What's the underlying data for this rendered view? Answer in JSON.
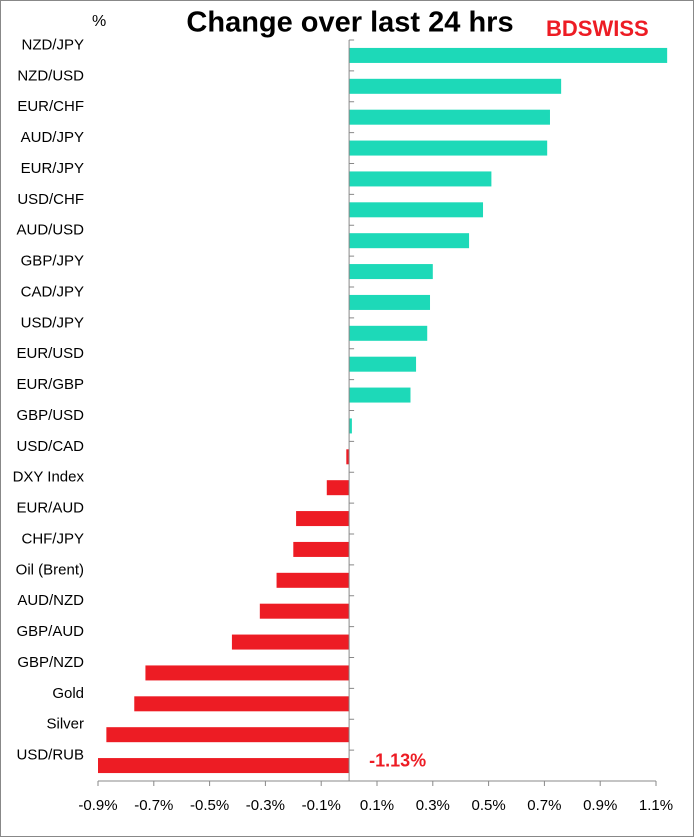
{
  "chart_data": {
    "type": "hbar",
    "title": "Change over last 24 hrs",
    "unit_label": "%",
    "logo": "BDSWISS",
    "categories": [
      "NZD/JPY",
      "NZD/USD",
      "EUR/CHF",
      "AUD/JPY",
      "EUR/JPY",
      "USD/CHF",
      "AUD/USD",
      "GBP/JPY",
      "CAD/JPY",
      "USD/JPY",
      "EUR/USD",
      "EUR/GBP",
      "GBP/USD",
      "USD/CAD",
      "DXY Index",
      "EUR/AUD",
      "CHF/JPY",
      "Oil (Brent)",
      "AUD/NZD",
      "GBP/AUD",
      "GBP/NZD",
      "Gold",
      "Silver",
      "USD/RUB"
    ],
    "values": [
      1.14,
      0.76,
      0.72,
      0.71,
      0.51,
      0.48,
      0.43,
      0.3,
      0.29,
      0.28,
      0.24,
      0.22,
      0.01,
      -0.01,
      -0.08,
      -0.19,
      -0.2,
      -0.26,
      -0.32,
      -0.42,
      -0.73,
      -0.77,
      -0.87,
      -1.13
    ],
    "value_labels": [
      null,
      null,
      null,
      null,
      null,
      null,
      null,
      null,
      null,
      null,
      null,
      null,
      null,
      null,
      null,
      null,
      null,
      null,
      null,
      null,
      null,
      null,
      null,
      "-1.13%"
    ],
    "positive_color": "#1dd9b8",
    "negative_color": "#ed1c24",
    "xlim": [
      -0.9,
      1.1
    ],
    "xticks": [
      {
        "value": -0.9,
        "label": "-0.9%"
      },
      {
        "value": -0.7,
        "label": "-0.7%"
      },
      {
        "value": -0.5,
        "label": "-0.5%"
      },
      {
        "value": -0.3,
        "label": "-0.3%"
      },
      {
        "value": -0.1,
        "label": "-0.1%"
      },
      {
        "value": 0.1,
        "label": "0.1%"
      },
      {
        "value": 0.3,
        "label": "0.3%"
      },
      {
        "value": 0.5,
        "label": "0.5%"
      },
      {
        "value": 0.7,
        "label": "0.7%"
      },
      {
        "value": 0.9,
        "label": "0.9%"
      },
      {
        "value": 1.1,
        "label": "1.1%"
      }
    ]
  }
}
